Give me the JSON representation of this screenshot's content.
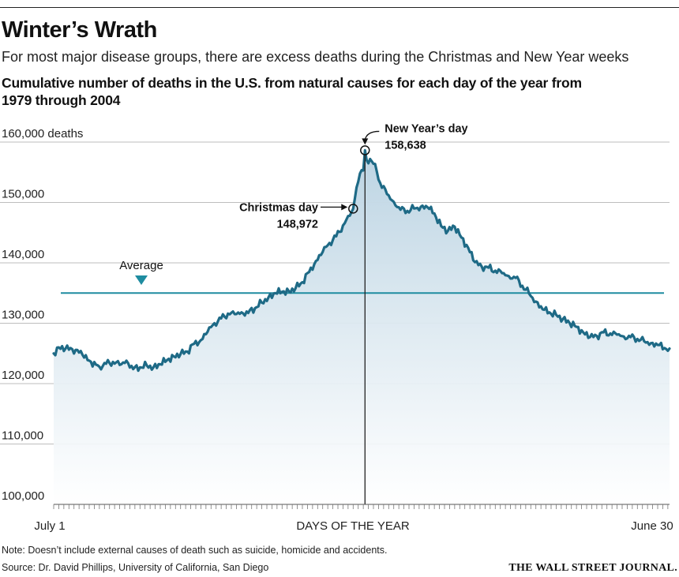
{
  "title": "Winter’s Wrath",
  "subtitle": "For most major disease groups, there are excess deaths during the Christmas and New Year weeks",
  "heading": "Cumulative number of deaths in the U.S. from natural causes for each day of the year from 1979 through 2004",
  "note": "Note: Doesn’t include external causes of death such as suicide, homicide and accidents.",
  "source": "Source: Dr. David Phillips, University of California, San Diego",
  "brand": "THE WALL STREET JOURNAL.",
  "colors": {
    "line": "#1e6a86",
    "area_top": "#bcd4e3",
    "average": "#1e8ca0",
    "grid": "#bdbdbd"
  },
  "chart_data": {
    "type": "area",
    "xlabel": "DAYS OF THE YEAR",
    "x_start_label": "July 1",
    "x_end_label": "June 30",
    "days": 365,
    "ylim": [
      100000,
      160000
    ],
    "yticks": [
      {
        "value": 160000,
        "label": "160,000 deaths"
      },
      {
        "value": 150000,
        "label": "150,000"
      },
      {
        "value": 140000,
        "label": "140,000"
      },
      {
        "value": 130000,
        "label": "130,000"
      },
      {
        "value": 120000,
        "label": "120,000"
      },
      {
        "value": 110000,
        "label": "110,000"
      },
      {
        "value": 100000,
        "label": "100,000"
      }
    ],
    "average": {
      "label": "Average",
      "value": 135000
    },
    "annotations": [
      {
        "name": "Christmas day",
        "label": "Christmas day",
        "value_label": "148,972",
        "day": 178,
        "value": 148972
      },
      {
        "name": "New Year's day",
        "label": "New Year’s day",
        "value_label": "158,638",
        "day": 185,
        "value": 158638
      }
    ],
    "keypoints": [
      [
        1,
        125000
      ],
      [
        4,
        126000
      ],
      [
        8,
        125800
      ],
      [
        14,
        125600
      ],
      [
        18,
        124800
      ],
      [
        22,
        123800
      ],
      [
        28,
        122800
      ],
      [
        32,
        123300
      ],
      [
        36,
        123600
      ],
      [
        40,
        123100
      ],
      [
        44,
        123800
      ],
      [
        48,
        122400
      ],
      [
        52,
        122700
      ],
      [
        56,
        123000
      ],
      [
        60,
        122700
      ],
      [
        64,
        123200
      ],
      [
        68,
        123900
      ],
      [
        72,
        124500
      ],
      [
        76,
        124900
      ],
      [
        80,
        125300
      ],
      [
        84,
        126600
      ],
      [
        88,
        127200
      ],
      [
        92,
        128600
      ],
      [
        96,
        130000
      ],
      [
        100,
        130800
      ],
      [
        104,
        131600
      ],
      [
        108,
        131500
      ],
      [
        112,
        131800
      ],
      [
        116,
        131700
      ],
      [
        120,
        132500
      ],
      [
        124,
        133400
      ],
      [
        128,
        134300
      ],
      [
        132,
        135000
      ],
      [
        136,
        135200
      ],
      [
        140,
        135300
      ],
      [
        144,
        135800
      ],
      [
        148,
        136800
      ],
      [
        152,
        138500
      ],
      [
        156,
        140300
      ],
      [
        160,
        141800
      ],
      [
        164,
        143300
      ],
      [
        168,
        144400
      ],
      [
        172,
        146200
      ],
      [
        176,
        147800
      ],
      [
        178,
        148972
      ],
      [
        180,
        152500
      ],
      [
        182,
        154800
      ],
      [
        184,
        155300
      ],
      [
        185,
        158638
      ],
      [
        186,
        157000
      ],
      [
        188,
        157200
      ],
      [
        190,
        156400
      ],
      [
        192,
        155100
      ],
      [
        194,
        153200
      ],
      [
        198,
        151400
      ],
      [
        202,
        150100
      ],
      [
        206,
        148800
      ],
      [
        210,
        148600
      ],
      [
        214,
        149000
      ],
      [
        218,
        149300
      ],
      [
        222,
        149200
      ],
      [
        226,
        148200
      ],
      [
        230,
        146100
      ],
      [
        234,
        145300
      ],
      [
        238,
        146000
      ],
      [
        242,
        144200
      ],
      [
        246,
        142500
      ],
      [
        250,
        140100
      ],
      [
        254,
        139400
      ],
      [
        258,
        139200
      ],
      [
        262,
        138700
      ],
      [
        266,
        138300
      ],
      [
        270,
        137800
      ],
      [
        274,
        137500
      ],
      [
        278,
        136200
      ],
      [
        282,
        134900
      ],
      [
        286,
        133600
      ],
      [
        290,
        132300
      ],
      [
        294,
        131800
      ],
      [
        298,
        131400
      ],
      [
        302,
        130700
      ],
      [
        306,
        130000
      ],
      [
        310,
        129400
      ],
      [
        314,
        128500
      ],
      [
        318,
        127700
      ],
      [
        322,
        127900
      ],
      [
        326,
        128500
      ],
      [
        330,
        128300
      ],
      [
        334,
        128100
      ],
      [
        338,
        127800
      ],
      [
        342,
        127700
      ],
      [
        346,
        127400
      ],
      [
        350,
        127000
      ],
      [
        354,
        126700
      ],
      [
        358,
        126400
      ],
      [
        362,
        125900
      ],
      [
        365,
        125800
      ]
    ]
  }
}
